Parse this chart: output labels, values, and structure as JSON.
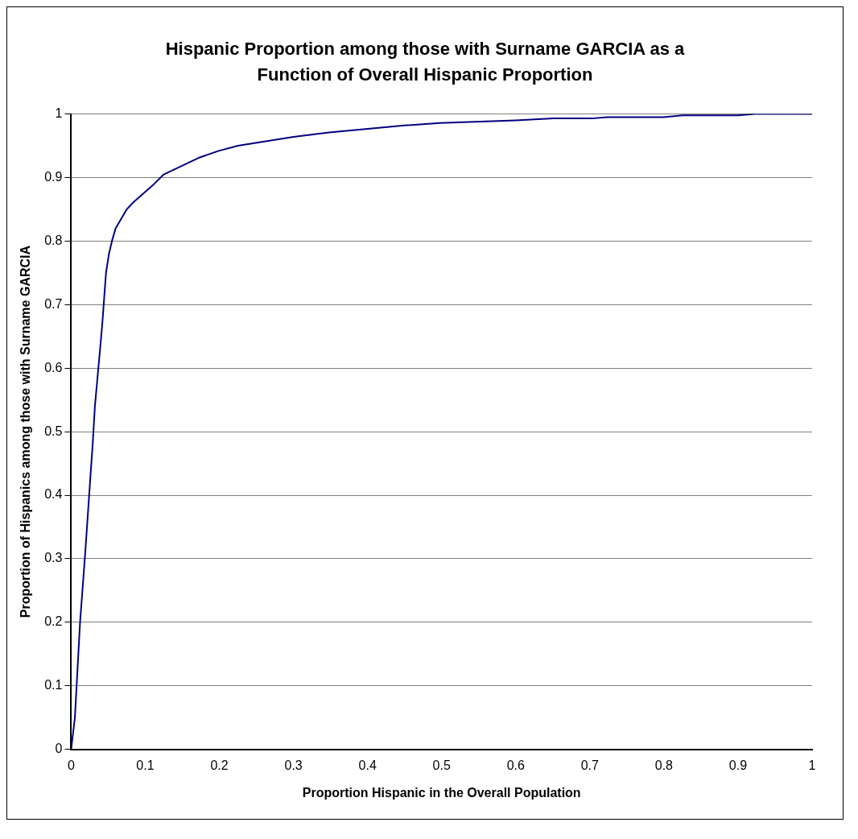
{
  "chart_data": {
    "type": "line",
    "title": "Hispanic Proportion among those with Surname GARCIA as a Function of Overall Hispanic Proportion",
    "xlabel": "Proportion Hispanic in the Overall Population",
    "ylabel": "Proportion of Hispanics among those with Surname GARCIA",
    "x": [
      0,
      0.005,
      0.012,
      0.019,
      0.026,
      0.029,
      0.032,
      0.039,
      0.042,
      0.047,
      0.051,
      0.055,
      0.06,
      0.075,
      0.083,
      0.112,
      0.125,
      0.172,
      0.199,
      0.225,
      0.3,
      0.348,
      0.45,
      0.498,
      0.6,
      0.651,
      0.702,
      0.724,
      0.8,
      0.825,
      0.9,
      0.923,
      1
    ],
    "series": [
      {
        "color": "#000080",
        "values": [
          0,
          0.05,
          0.2,
          0.31,
          0.43,
          0.48,
          0.54,
          0.63,
          0.67,
          0.75,
          0.78,
          0.8,
          0.82,
          0.85,
          0.86,
          0.89,
          0.905,
          0.931,
          0.942,
          0.95,
          0.964,
          0.971,
          0.982,
          0.986,
          0.99,
          0.993,
          0.993,
          0.995,
          0.995,
          0.998,
          0.998,
          1,
          1
        ]
      }
    ],
    "xlim": [
      0,
      1
    ],
    "xticks": [
      0,
      0.1,
      0.2,
      0.3,
      0.4,
      0.5,
      0.6,
      0.7,
      0.8,
      0.9,
      1
    ],
    "ylim": [
      0,
      1
    ],
    "yticks": [
      0,
      0.1,
      0.2,
      0.3,
      0.4,
      0.5,
      0.6,
      0.7,
      0.8,
      0.9,
      1
    ],
    "grid": "y",
    "legend": false,
    "marker": "none",
    "line_style": "solid"
  }
}
